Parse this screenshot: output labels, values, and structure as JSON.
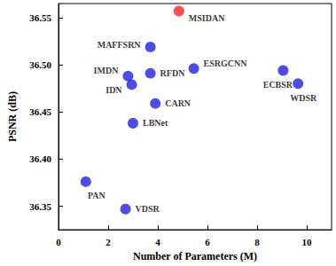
{
  "chart_data": {
    "type": "scatter",
    "x_label": "Number of Parameters (M)",
    "y_label": "PSNR (dB)",
    "labels": [
      "MSIDAN",
      "MAFFSRN",
      "IMDN",
      "IDN",
      "RFDN",
      "ESRGCNN",
      "ECBSR",
      "WDSR",
      "CARN",
      "LBNet",
      "PAN",
      "VDSR"
    ],
    "x": [
      4.85,
      3.7,
      2.8,
      2.95,
      3.7,
      5.45,
      9.05,
      9.65,
      3.9,
      3.0,
      1.1,
      2.7
    ],
    "values": [
      36.557,
      36.519,
      36.488,
      36.479,
      36.491,
      36.496,
      36.494,
      36.48,
      36.459,
      36.438,
      36.376,
      36.347
    ],
    "colors": [
      "#ff2020",
      "#1f1fe6",
      "#1f1fe6",
      "#1f1fe6",
      "#1f1fe6",
      "#1f1fe6",
      "#1f1fe6",
      "#1f1fe6",
      "#1f1fe6",
      "#1f1fe6",
      "#1f1fe6",
      "#1f1fe6"
    ],
    "xlim": [
      0,
      11
    ],
    "xticks": [
      0,
      2,
      4,
      6,
      8,
      10
    ],
    "ylim": [
      36.325,
      36.565
    ],
    "yticks": [
      {
        "value": 36.35,
        "label": "36.35"
      },
      {
        "value": 36.4,
        "label": "36.40"
      },
      {
        "value": 36.45,
        "label": "36.45"
      },
      {
        "value": 36.5,
        "label": "36.50"
      },
      {
        "value": 36.55,
        "label": "36.55"
      }
    ],
    "grid": false
  }
}
